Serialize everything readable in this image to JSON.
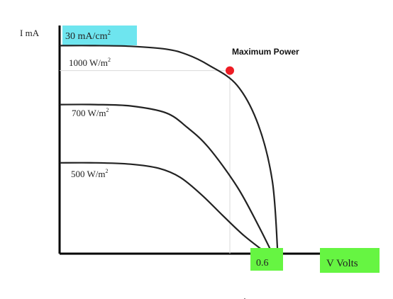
{
  "chart_data": {
    "type": "line",
    "ylabel": "I mA",
    "ylabel_unit": "30 mA/cm",
    "ylabel_unit_sup": "2",
    "xlabel": "V Volts",
    "x_tick_label": "0.6",
    "annotation": "Maximum Power",
    "annotation_color": "#ee1c24",
    "highlight_colors": {
      "ylabel_unit": "#6ee5ef",
      "x_tick": "#66f542",
      "xlabel": "#66f542"
    },
    "series": [
      {
        "name": "1000 W/m",
        "name_sup": "2",
        "x": [
          0,
          0.1,
          0.2,
          0.3,
          0.36,
          0.42,
          0.5,
          0.56,
          0.6,
          0.615
        ],
        "y": [
          30,
          30,
          29.9,
          29.5,
          28.7,
          27.2,
          24.3,
          18.6,
          10.4,
          0
        ]
      },
      {
        "name": "700 W/m",
        "name_sup": "2",
        "x": [
          0,
          0.1,
          0.2,
          0.3,
          0.36,
          0.42,
          0.5,
          0.56,
          0.6
        ],
        "y": [
          21.5,
          21.5,
          21.3,
          20.3,
          18.2,
          15.3,
          9.7,
          4.1,
          0
        ]
      },
      {
        "name": "500 W/m",
        "name_sup": "2",
        "x": [
          0,
          0.1,
          0.2,
          0.28,
          0.34,
          0.4,
          0.46,
          0.52,
          0.585
        ],
        "y": [
          13.1,
          13.1,
          12.9,
          12.3,
          11.0,
          8.5,
          5.5,
          2.6,
          0
        ]
      }
    ],
    "max_power_point": {
      "x": 0.48,
      "y": 26.4
    },
    "xlim": [
      0,
      0.8
    ],
    "ylim": [
      0,
      33
    ]
  }
}
